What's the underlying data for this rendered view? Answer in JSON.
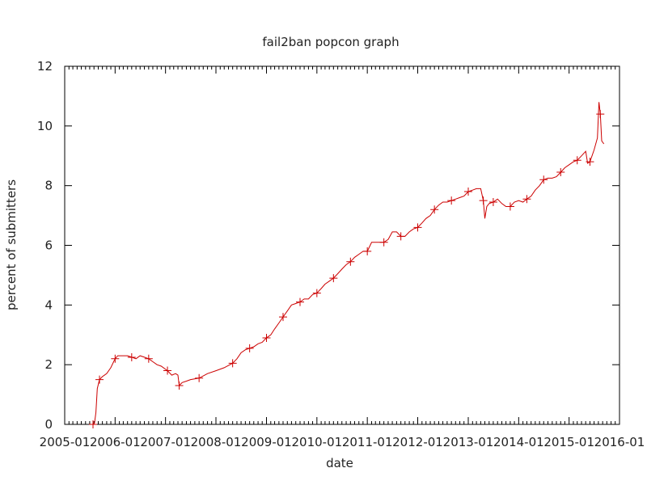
{
  "chart_data": {
    "type": "line",
    "title": "fail2ban popcon graph",
    "xlabel": "date",
    "ylabel": "percent of submitters",
    "x_range": [
      "2005-01",
      "2016-01"
    ],
    "ylim": [
      0,
      12
    ],
    "y_ticks": [
      0,
      2,
      4,
      6,
      8,
      10,
      12
    ],
    "x_ticks": [
      "2005-01",
      "2006-01",
      "2007-01",
      "2008-01",
      "2009-01",
      "2010-01",
      "2011-01",
      "2012-01",
      "2013-01",
      "2014-01",
      "2015-01",
      "2016-01"
    ],
    "grid": false,
    "legend": "none",
    "series": [
      {
        "color": "#cc0000",
        "marker": "plus",
        "points": [
          [
            "2005-07-25",
            0.0
          ],
          [
            "2005-08-05",
            0.05
          ],
          [
            "2005-08-15",
            0.4
          ],
          [
            "2005-08-25",
            1.2
          ],
          [
            "2005-09-10",
            1.5
          ],
          [
            "2005-10-01",
            1.6
          ],
          [
            "2005-11-01",
            1.7
          ],
          [
            "2005-12-01",
            1.9
          ],
          [
            "2006-01-01",
            2.2
          ],
          [
            "2006-01-20",
            2.3
          ],
          [
            "2006-03-01",
            2.3
          ],
          [
            "2006-04-01",
            2.3
          ],
          [
            "2006-05-01",
            2.25
          ],
          [
            "2006-06-01",
            2.2
          ],
          [
            "2006-07-01",
            2.3
          ],
          [
            "2006-08-01",
            2.25
          ],
          [
            "2006-09-01",
            2.2
          ],
          [
            "2006-10-01",
            2.1
          ],
          [
            "2006-11-01",
            2.0
          ],
          [
            "2006-12-01",
            1.95
          ],
          [
            "2007-01-15",
            1.8
          ],
          [
            "2007-02-15",
            1.65
          ],
          [
            "2007-03-15",
            1.7
          ],
          [
            "2007-04-01",
            1.65
          ],
          [
            "2007-04-10",
            1.3
          ],
          [
            "2007-05-01",
            1.4
          ],
          [
            "2007-06-01",
            1.45
          ],
          [
            "2007-07-01",
            1.5
          ],
          [
            "2007-09-01",
            1.55
          ],
          [
            "2007-11-01",
            1.7
          ],
          [
            "2008-01-01",
            1.8
          ],
          [
            "2008-03-01",
            1.9
          ],
          [
            "2008-05-01",
            2.05
          ],
          [
            "2008-06-01",
            2.2
          ],
          [
            "2008-07-01",
            2.4
          ],
          [
            "2008-08-01",
            2.5
          ],
          [
            "2008-09-01",
            2.55
          ],
          [
            "2008-10-01",
            2.6
          ],
          [
            "2008-11-01",
            2.7
          ],
          [
            "2008-12-01",
            2.75
          ],
          [
            "2009-01-01",
            2.9
          ],
          [
            "2009-02-01",
            3.0
          ],
          [
            "2009-03-01",
            3.2
          ],
          [
            "2009-04-01",
            3.4
          ],
          [
            "2009-05-01",
            3.6
          ],
          [
            "2009-06-01",
            3.8
          ],
          [
            "2009-07-01",
            4.0
          ],
          [
            "2009-08-01",
            4.05
          ],
          [
            "2009-09-01",
            4.1
          ],
          [
            "2009-10-01",
            4.2
          ],
          [
            "2009-11-01",
            4.2
          ],
          [
            "2009-12-01",
            4.35
          ],
          [
            "2010-01-01",
            4.4
          ],
          [
            "2010-02-01",
            4.55
          ],
          [
            "2010-03-01",
            4.7
          ],
          [
            "2010-04-01",
            4.8
          ],
          [
            "2010-05-01",
            4.9
          ],
          [
            "2010-06-01",
            5.05
          ],
          [
            "2010-07-01",
            5.2
          ],
          [
            "2010-08-01",
            5.35
          ],
          [
            "2010-09-01",
            5.45
          ],
          [
            "2010-10-01",
            5.6
          ],
          [
            "2010-11-01",
            5.7
          ],
          [
            "2010-12-01",
            5.8
          ],
          [
            "2011-01-01",
            5.8
          ],
          [
            "2011-02-01",
            6.1
          ],
          [
            "2011-03-01",
            6.1
          ],
          [
            "2011-04-01",
            6.1
          ],
          [
            "2011-05-01",
            6.1
          ],
          [
            "2011-06-01",
            6.2
          ],
          [
            "2011-07-01",
            6.45
          ],
          [
            "2011-08-01",
            6.45
          ],
          [
            "2011-09-01",
            6.3
          ],
          [
            "2011-10-01",
            6.3
          ],
          [
            "2011-11-01",
            6.45
          ],
          [
            "2011-12-01",
            6.55
          ],
          [
            "2012-01-01",
            6.6
          ],
          [
            "2012-02-01",
            6.75
          ],
          [
            "2012-03-01",
            6.9
          ],
          [
            "2012-04-01",
            7.0
          ],
          [
            "2012-05-01",
            7.2
          ],
          [
            "2012-06-01",
            7.35
          ],
          [
            "2012-07-01",
            7.45
          ],
          [
            "2012-08-01",
            7.45
          ],
          [
            "2012-09-01",
            7.5
          ],
          [
            "2012-10-01",
            7.55
          ],
          [
            "2012-11-01",
            7.6
          ],
          [
            "2012-12-01",
            7.65
          ],
          [
            "2013-01-01",
            7.8
          ],
          [
            "2013-02-01",
            7.85
          ],
          [
            "2013-03-01",
            7.9
          ],
          [
            "2013-04-01",
            7.9
          ],
          [
            "2013-04-20",
            7.5
          ],
          [
            "2013-05-01",
            6.9
          ],
          [
            "2013-05-15",
            7.3
          ],
          [
            "2013-06-01",
            7.4
          ],
          [
            "2013-07-01",
            7.45
          ],
          [
            "2013-08-01",
            7.55
          ],
          [
            "2013-09-01",
            7.4
          ],
          [
            "2013-10-01",
            7.3
          ],
          [
            "2013-11-01",
            7.3
          ],
          [
            "2013-12-01",
            7.45
          ],
          [
            "2014-01-01",
            7.5
          ],
          [
            "2014-02-01",
            7.45
          ],
          [
            "2014-03-01",
            7.55
          ],
          [
            "2014-04-01",
            7.65
          ],
          [
            "2014-05-01",
            7.85
          ],
          [
            "2014-06-01",
            8.0
          ],
          [
            "2014-07-01",
            8.2
          ],
          [
            "2014-08-01",
            8.25
          ],
          [
            "2014-09-01",
            8.25
          ],
          [
            "2014-10-01",
            8.3
          ],
          [
            "2014-11-01",
            8.45
          ],
          [
            "2014-12-01",
            8.6
          ],
          [
            "2015-01-01",
            8.7
          ],
          [
            "2015-02-01",
            8.8
          ],
          [
            "2015-03-01",
            8.85
          ],
          [
            "2015-04-01",
            9.0
          ],
          [
            "2015-05-01",
            9.15
          ],
          [
            "2015-05-15",
            8.75
          ],
          [
            "2015-06-01",
            8.8
          ],
          [
            "2015-07-01",
            9.2
          ],
          [
            "2015-07-25",
            9.6
          ],
          [
            "2015-08-05",
            10.8
          ],
          [
            "2015-08-15",
            10.4
          ],
          [
            "2015-08-25",
            9.5
          ],
          [
            "2015-09-10",
            9.4
          ]
        ]
      }
    ]
  }
}
